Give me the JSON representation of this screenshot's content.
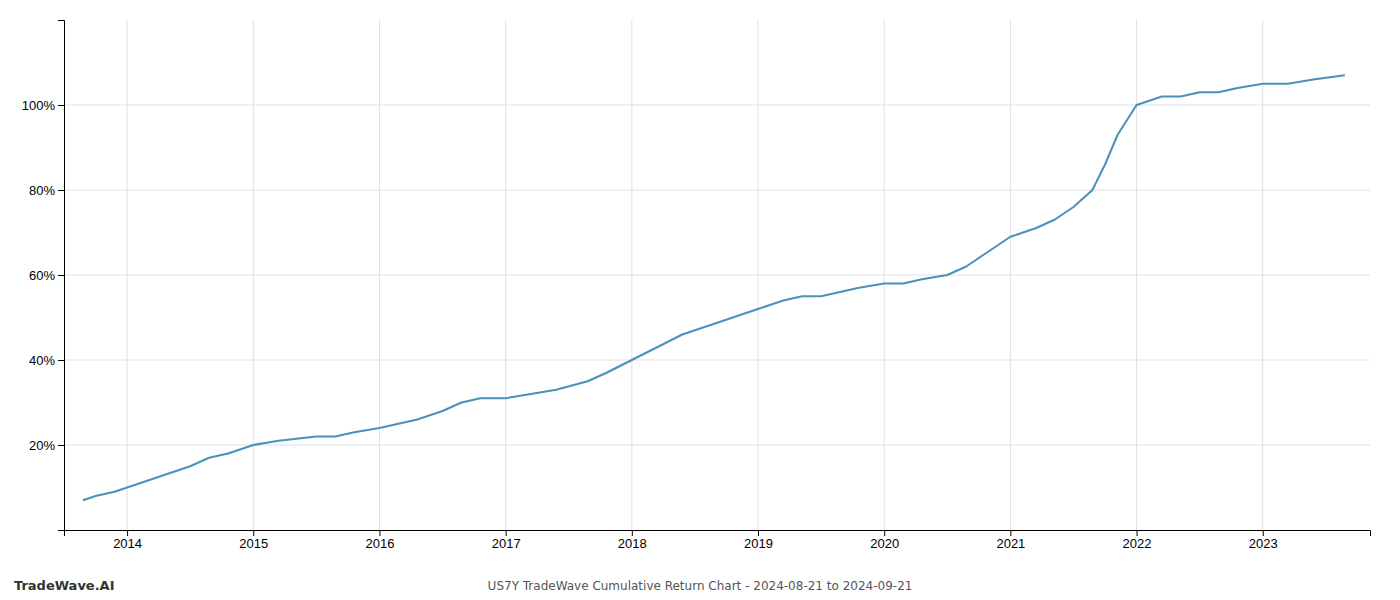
{
  "chart_data": {
    "type": "line",
    "title": "US7Y TradeWave Cumulative Return Chart - 2024-08-21 to 2024-09-21",
    "annotations": [
      "TradeWave.AI"
    ],
    "x": [
      2013.65,
      2013.75,
      2013.9,
      2014.1,
      2014.3,
      2014.5,
      2014.65,
      2014.8,
      2015.0,
      2015.2,
      2015.5,
      2015.65,
      2015.8,
      2016.0,
      2016.15,
      2016.3,
      2016.5,
      2016.65,
      2016.8,
      2017.0,
      2017.2,
      2017.4,
      2017.65,
      2017.8,
      2018.0,
      2018.2,
      2018.4,
      2018.6,
      2018.8,
      2019.0,
      2019.1,
      2019.2,
      2019.35,
      2019.5,
      2019.65,
      2019.8,
      2020.0,
      2020.15,
      2020.3,
      2020.5,
      2020.65,
      2020.8,
      2021.0,
      2021.2,
      2021.35,
      2021.5,
      2021.65,
      2021.75,
      2021.85,
      2022.0,
      2022.1,
      2022.2,
      2022.35,
      2022.5,
      2022.65,
      2022.8,
      2023.0,
      2023.2,
      2023.4,
      2023.65
    ],
    "values": [
      7,
      8,
      9,
      11,
      13,
      15,
      17,
      18,
      20,
      21,
      22,
      22,
      23,
      24,
      25,
      26,
      28,
      30,
      31,
      31,
      32,
      33,
      35,
      37,
      40,
      43,
      46,
      48,
      50,
      52,
      53,
      54,
      55,
      55,
      56,
      57,
      58,
      58,
      59,
      60,
      62,
      65,
      69,
      71,
      73,
      76,
      80,
      86,
      93,
      100,
      101,
      102,
      102,
      103,
      103,
      104,
      105,
      105,
      106,
      107
    ],
    "color": "#4a90b8",
    "xlim": [
      2013.5,
      2023.85
    ],
    "xticks": [
      2014,
      2015,
      2016,
      2017,
      2018,
      2019,
      2020,
      2021,
      2022,
      2023
    ],
    "ylim": [
      0,
      120
    ],
    "yticks": [
      {
        "value": 20,
        "label": "20%"
      },
      {
        "value": 40,
        "label": "40%"
      },
      {
        "value": 60,
        "label": "60%"
      },
      {
        "value": 80,
        "label": "80%"
      },
      {
        "value": 100,
        "label": "100%"
      }
    ],
    "grid": true
  }
}
